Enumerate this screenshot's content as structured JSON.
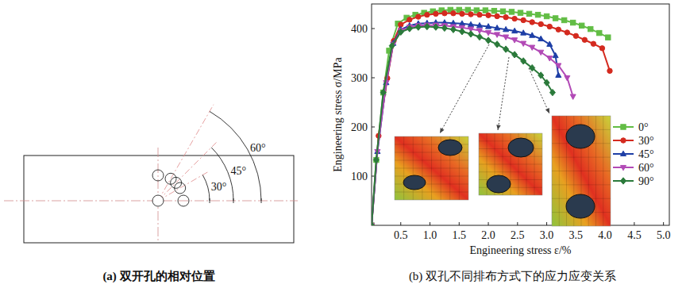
{
  "chart_data": {
    "type": "line",
    "title": "(b) 双孔不同排布方式下的应力应变关系",
    "x_label": "Engineering stress ε/%",
    "y_label": "Engineering stress σ/MPa",
    "xlim": [
      0,
      5.1
    ],
    "ylim": [
      0,
      450
    ],
    "xticks": [
      0.5,
      {
        "value": 1,
        "label": "1.0"
      },
      1.5,
      {
        "value": 2,
        "label": "2.0"
      },
      2.5,
      {
        "value": 3,
        "label": "3.0"
      },
      3.5,
      {
        "value": 4,
        "label": "4.0"
      },
      4.5,
      {
        "value": 5,
        "label": "5.0"
      }
    ],
    "yticks": [
      100,
      200,
      300,
      400
    ],
    "grid": false,
    "legend": "right",
    "series": [
      {
        "name": "0°",
        "color": "#62bd45",
        "marker": "square",
        "x": [
          0,
          0.08,
          0.2,
          0.3,
          0.45,
          0.6,
          0.75,
          0.9,
          1.05,
          1.2,
          1.35,
          1.5,
          1.65,
          1.8,
          1.95,
          2.1,
          2.25,
          2.4,
          2.55,
          2.7,
          2.85,
          3.0,
          3.15,
          3.3,
          3.45,
          3.6,
          3.75,
          3.9,
          4.05
        ],
        "values": [
          0,
          133,
          270,
          355,
          410,
          422,
          428,
          432,
          435,
          437,
          438,
          438,
          438,
          437,
          437,
          436,
          435,
          434,
          432,
          430,
          428,
          425,
          421,
          417,
          412,
          406,
          399,
          391,
          382
        ]
      },
      {
        "name": "30°",
        "color": "#d42a1f",
        "marker": "circle",
        "x": [
          0,
          0.12,
          0.27,
          0.38,
          0.5,
          0.65,
          0.8,
          0.95,
          1.1,
          1.25,
          1.4,
          1.55,
          1.7,
          1.85,
          2.0,
          2.15,
          2.3,
          2.45,
          2.6,
          2.75,
          2.9,
          3.05,
          3.2,
          3.35,
          3.5,
          3.65,
          3.8,
          3.95,
          4.08
        ],
        "values": [
          0,
          182,
          299,
          375,
          408,
          418,
          424,
          428,
          430,
          431,
          431,
          430,
          429,
          428,
          427,
          425,
          423,
          420,
          417,
          413,
          409,
          404,
          398,
          392,
          385,
          377,
          369,
          360,
          314
        ]
      },
      {
        "name": "45°",
        "color": "#1e3fa6",
        "marker": "triangle",
        "x": [
          0,
          0.1,
          0.25,
          0.37,
          0.5,
          0.65,
          0.8,
          0.95,
          1.1,
          1.25,
          1.4,
          1.55,
          1.7,
          1.85,
          2.0,
          2.15,
          2.3,
          2.45,
          2.6,
          2.75,
          2.9,
          3.05,
          3.15,
          3.2
        ],
        "values": [
          0,
          150,
          290,
          370,
          398,
          406,
          410,
          411,
          412,
          412,
          411,
          410,
          408,
          406,
          404,
          401,
          398,
          395,
          391,
          386,
          379,
          368,
          345,
          305
        ]
      },
      {
        "name": "60°",
        "color": "#b24ab6",
        "marker": "triangle-down",
        "x": [
          0,
          0.1,
          0.25,
          0.37,
          0.5,
          0.65,
          0.8,
          0.95,
          1.1,
          1.25,
          1.4,
          1.55,
          1.7,
          1.85,
          2.0,
          2.15,
          2.3,
          2.45,
          2.6,
          2.75,
          2.9,
          3.05,
          3.2,
          3.35,
          3.45
        ],
        "values": [
          0,
          150,
          290,
          368,
          396,
          403,
          406,
          407,
          407,
          406,
          404,
          402,
          399,
          396,
          392,
          388,
          383,
          377,
          370,
          362,
          352,
          340,
          325,
          300,
          262
        ]
      },
      {
        "name": "90°",
        "color": "#2b7a3b",
        "marker": "diamond",
        "x": [
          0,
          0.08,
          0.2,
          0.35,
          0.5,
          0.65,
          0.8,
          0.95,
          1.1,
          1.25,
          1.4,
          1.55,
          1.7,
          1.85,
          2.0,
          2.15,
          2.3,
          2.45,
          2.6,
          2.75,
          2.9,
          3.0,
          3.1
        ],
        "values": [
          0,
          133,
          270,
          365,
          393,
          400,
          403,
          404,
          403,
          401,
          398,
          394,
          389,
          383,
          376,
          368,
          358,
          347,
          334,
          320,
          305,
          290,
          270
        ]
      }
    ]
  },
  "diagram": {
    "caption": "(a) 双开孔的相对位置",
    "hole_angles": [
      0,
      30,
      45,
      60,
      90
    ],
    "dimensions": [
      {
        "value": 30,
        "label": "30°"
      },
      {
        "value": 45,
        "label": "45°"
      },
      {
        "value": 60,
        "label": "60°"
      }
    ]
  }
}
